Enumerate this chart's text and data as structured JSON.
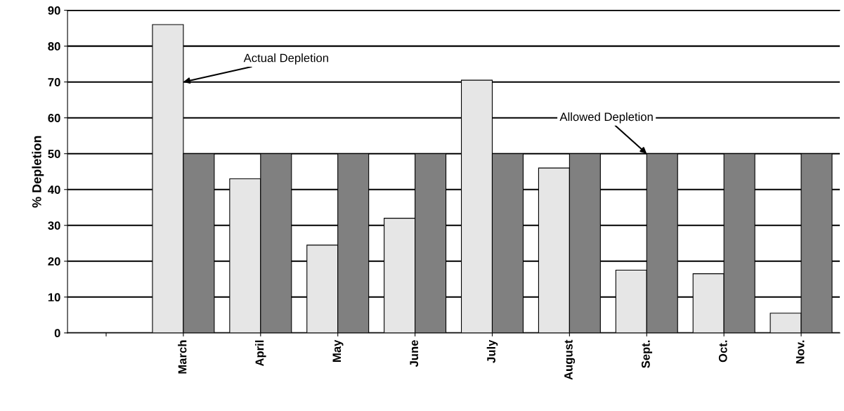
{
  "chart_data": {
    "type": "bar",
    "ylabel": "% Depletion",
    "categories": [
      null,
      "March",
      "April",
      "May",
      "June",
      "July",
      "August",
      "Sept.",
      "Oct.",
      "Nov."
    ],
    "series": [
      {
        "color": "#e6e6e6",
        "values": [
          null,
          86,
          43,
          24.5,
          32,
          70.5,
          46,
          17.5,
          16.5,
          5.5
        ]
      },
      {
        "color": "#808080",
        "values": [
          null,
          50,
          50,
          50,
          50,
          50,
          50,
          50,
          50,
          50
        ]
      }
    ],
    "ylim": [
      0,
      90
    ],
    "yticks": [
      0,
      10,
      20,
      30,
      40,
      50,
      60,
      70,
      80,
      90
    ],
    "grid": "y",
    "annotations": [
      {
        "text": "Actual Depletion",
        "x": "March",
        "y": 70
      },
      {
        "text": "Allowed Depletion",
        "x": "Sept.",
        "y": 50
      }
    ]
  }
}
